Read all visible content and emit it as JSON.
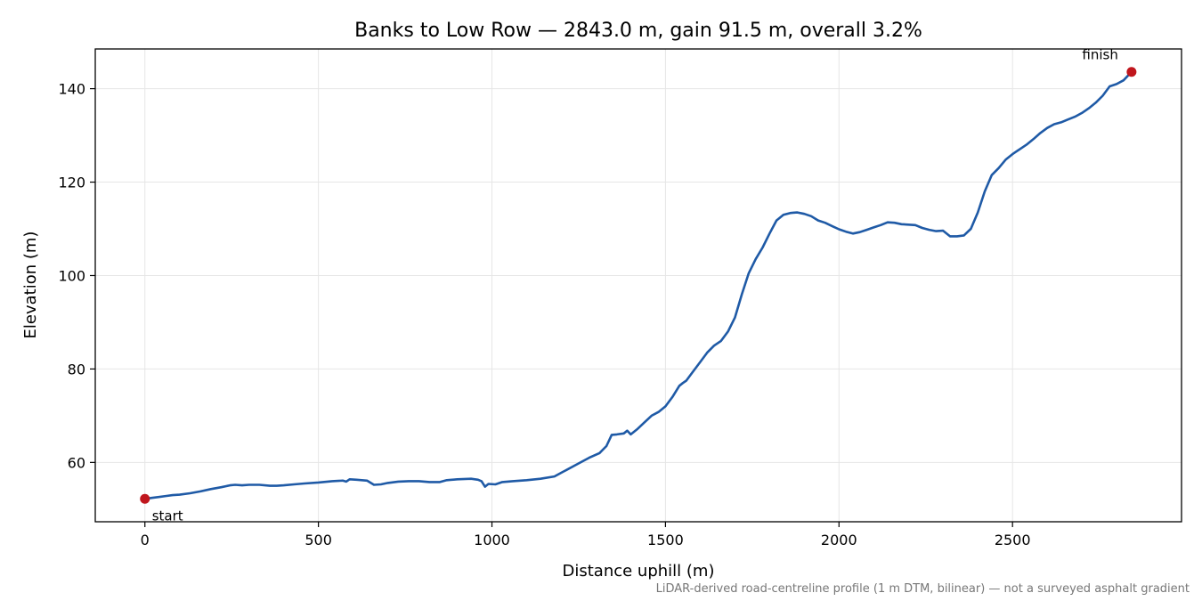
{
  "chart_data": {
    "type": "line",
    "title": "Banks to Low Row — 2843.0 m, gain 91.5 m, overall 3.2%",
    "xlabel": "Distance uphill (m)",
    "ylabel": "Elevation (m)",
    "footnote": "LiDAR-derived road-centreline profile (1 m DTM, bilinear) — not a surveyed asphalt gradient",
    "xlim": [
      -143,
      2987
    ],
    "ylim": [
      47.3,
      148.5
    ],
    "xticks": [
      0,
      500,
      1000,
      1500,
      2000,
      2500
    ],
    "yticks": [
      60,
      80,
      100,
      120,
      140
    ],
    "grid": true,
    "line_color": "#1f5aa6",
    "marker_color": "#c0161d",
    "series": [
      {
        "x": [
          0,
          20,
          40,
          60,
          80,
          100,
          130,
          160,
          190,
          220,
          245,
          260,
          280,
          300,
          330,
          360,
          380,
          400,
          430,
          460,
          500,
          540,
          570,
          580,
          590,
          610,
          640,
          660,
          680,
          700,
          730,
          760,
          790,
          820,
          850,
          870,
          900,
          940,
          960,
          970,
          980,
          990,
          1010,
          1030,
          1060,
          1100,
          1140,
          1180,
          1200,
          1240,
          1280,
          1310,
          1330,
          1345,
          1360,
          1380,
          1390,
          1400,
          1420,
          1440,
          1460,
          1480,
          1500,
          1520,
          1540,
          1550,
          1560,
          1580,
          1600,
          1620,
          1640,
          1660,
          1680,
          1700,
          1720,
          1740,
          1760,
          1780,
          1800,
          1820,
          1840,
          1860,
          1880,
          1900,
          1920,
          1940,
          1960,
          1980,
          2000,
          2020,
          2040,
          2060,
          2080,
          2100,
          2120,
          2140,
          2160,
          2180,
          2200,
          2220,
          2240,
          2260,
          2280,
          2300,
          2320,
          2340,
          2360,
          2380,
          2400,
          2420,
          2440,
          2460,
          2480,
          2500,
          2520,
          2540,
          2560,
          2580,
          2600,
          2620,
          2640,
          2660,
          2680,
          2700,
          2720,
          2740,
          2760,
          2780,
          2800,
          2820,
          2843
        ],
        "y": [
          52.2,
          52.4,
          52.6,
          52.8,
          53.0,
          53.1,
          53.4,
          53.8,
          54.3,
          54.7,
          55.1,
          55.2,
          55.1,
          55.2,
          55.2,
          55.0,
          55.0,
          55.1,
          55.3,
          55.5,
          55.7,
          56.0,
          56.1,
          55.9,
          56.4,
          56.3,
          56.1,
          55.2,
          55.3,
          55.6,
          55.9,
          56.0,
          56.0,
          55.8,
          55.8,
          56.2,
          56.4,
          56.5,
          56.3,
          56.0,
          54.8,
          55.4,
          55.3,
          55.8,
          56.0,
          56.2,
          56.5,
          57.0,
          57.8,
          59.4,
          61.0,
          62.0,
          63.5,
          65.9,
          66.0,
          66.2,
          66.8,
          66.0,
          67.2,
          68.6,
          70.0,
          70.8,
          72.0,
          74.0,
          76.4,
          77.0,
          77.5,
          79.5,
          81.5,
          83.5,
          85.0,
          86.0,
          88.0,
          91.0,
          96.0,
          100.5,
          103.5,
          106.0,
          109.0,
          111.8,
          113.0,
          113.4,
          113.5,
          113.2,
          112.7,
          111.8,
          111.3,
          110.6,
          109.9,
          109.4,
          109.0,
          109.3,
          109.8,
          110.3,
          110.8,
          111.4,
          111.3,
          111.0,
          110.9,
          110.8,
          110.2,
          109.8,
          109.5,
          109.6,
          108.4,
          108.4,
          108.6,
          110.0,
          113.5,
          118.0,
          121.5,
          123.0,
          124.8,
          126.0,
          127.0,
          128.0,
          129.2,
          130.5,
          131.6,
          132.4,
          132.8,
          133.4,
          134.0,
          134.8,
          135.8,
          137.0,
          138.5,
          140.5,
          141.0,
          141.8,
          143.6
        ]
      }
    ],
    "annotations": [
      {
        "label": "start",
        "x": 0,
        "y": 52.2
      },
      {
        "label": "finish",
        "x": 2843,
        "y": 143.6
      }
    ]
  }
}
